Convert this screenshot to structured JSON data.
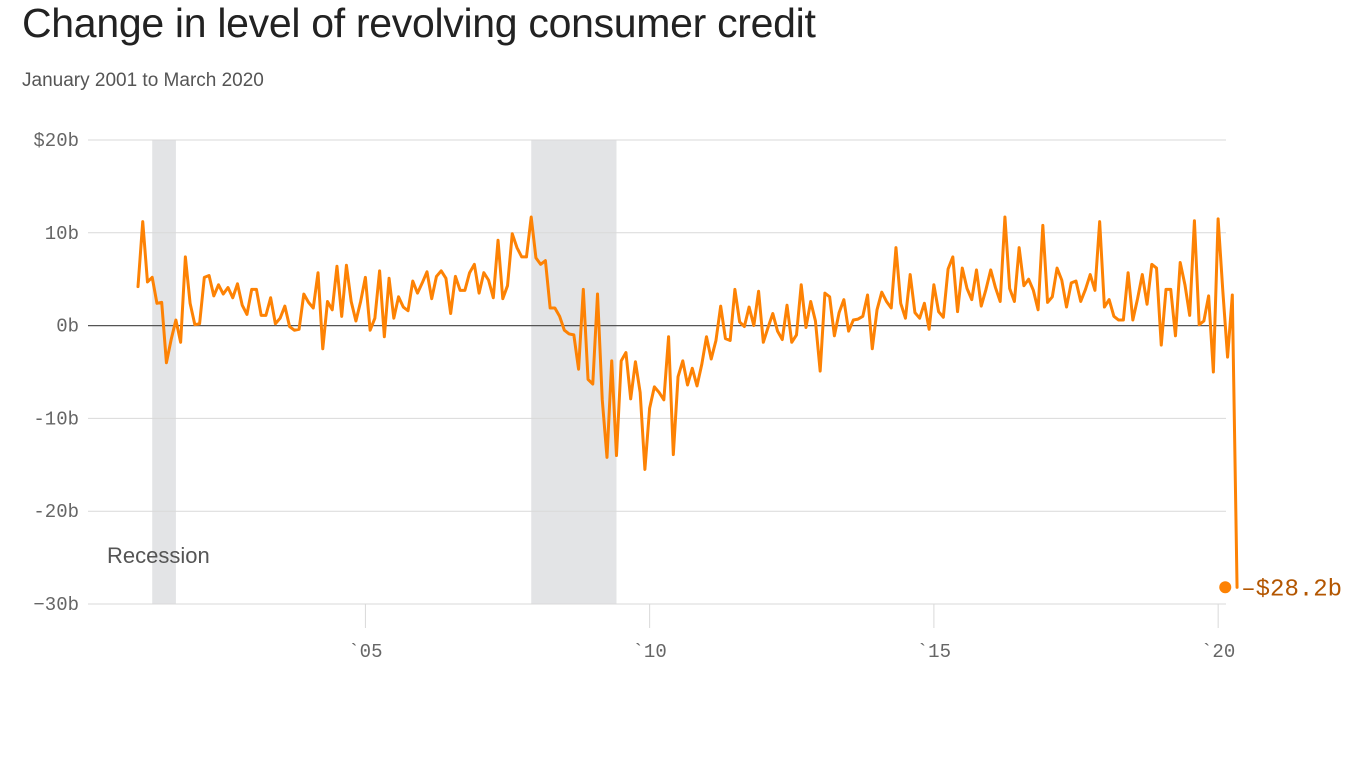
{
  "title": "Change in level of revolving consumer credit",
  "subtitle": "January 2001 to March 2020",
  "colors": {
    "line": "#fd8204",
    "end_label": "#b35600",
    "recession_band": "#e3e4e6",
    "grid": "#d9d9d9",
    "zero_line": "#555555",
    "tick_text": "#666666"
  },
  "chart_data": {
    "type": "line",
    "title": "Change in level of revolving consumer credit",
    "subtitle": "January 2001 to March 2020",
    "xlabel": "",
    "ylabel": "",
    "ylim": [
      -30,
      20
    ],
    "xlim": [
      2000.8,
      2020.2
    ],
    "grid": true,
    "y_ticks": [
      {
        "value": 20,
        "label": "$20b"
      },
      {
        "value": 10,
        "label": "10b"
      },
      {
        "value": 0,
        "label": "0b"
      },
      {
        "value": -10,
        "label": "-10b"
      },
      {
        "value": -20,
        "label": "-20b"
      },
      {
        "value": -30,
        "label": "−30b"
      }
    ],
    "x_ticks": [
      {
        "value": 2005,
        "label": "`05"
      },
      {
        "value": 2010,
        "label": "`10"
      },
      {
        "value": 2015,
        "label": "`15"
      },
      {
        "value": 2020,
        "label": "`20"
      }
    ],
    "recessions": [
      {
        "start": 2001.25,
        "end": 2001.667
      },
      {
        "start": 2007.917,
        "end": 2009.417
      }
    ],
    "recession_label": "Recession",
    "end_label": "–$28.2b",
    "end_point": {
      "x": 2020.125,
      "y": -28.2
    },
    "series": [
      {
        "x_start": 2001.0,
        "x_step": 0.08333,
        "values": [
          4.2,
          11.2,
          4.7,
          5.2,
          2.4,
          2.5,
          -4.0,
          -1.5,
          0.6,
          -1.8,
          7.4,
          2.4,
          0.1,
          0.2,
          5.2,
          5.4,
          3.2,
          4.4,
          3.4,
          4.1,
          3.0,
          4.5,
          2.2,
          1.2,
          3.9,
          3.9,
          1.1,
          1.1,
          3.0,
          0.2,
          0.8,
          2.1,
          -0.1,
          -0.5,
          -0.4,
          3.4,
          2.5,
          1.9,
          5.7,
          -2.5,
          2.6,
          1.7,
          6.4,
          1.0,
          6.5,
          2.6,
          0.5,
          2.6,
          5.2,
          -0.5,
          0.8,
          5.9,
          -1.2,
          5.1,
          0.8,
          3.1,
          2.0,
          1.6,
          4.8,
          3.5,
          4.6,
          5.8,
          2.9,
          5.3,
          5.9,
          5.1,
          1.3,
          5.3,
          3.8,
          3.8,
          5.7,
          6.6,
          3.5,
          5.7,
          4.9,
          3.0,
          9.2,
          2.9,
          4.3,
          9.9,
          8.4,
          7.4,
          7.4,
          11.7,
          7.3,
          6.6,
          7.0,
          1.9,
          1.9,
          1.0,
          -0.5,
          -0.9,
          -1.0,
          -4.7,
          3.9,
          -5.8,
          -6.3,
          3.4,
          -8.0,
          -14.2,
          -3.8,
          -14.0,
          -3.8,
          -2.9,
          -7.9,
          -3.9,
          -7.2,
          -15.5,
          -8.9,
          -6.6,
          -7.2,
          -8.0,
          -1.2,
          -13.9,
          -5.5,
          -3.8,
          -6.4,
          -4.6,
          -6.5,
          -4.2,
          -1.2,
          -3.6,
          -1.6,
          2.1,
          -1.4,
          -1.6,
          3.9,
          0.4,
          -0.1,
          2.0,
          0.0,
          3.7,
          -1.8,
          -0.2,
          1.3,
          -0.6,
          -1.5,
          2.2,
          -1.8,
          -1.0,
          4.4,
          -0.2,
          2.6,
          0.5,
          -4.9,
          3.5,
          3.1,
          -1.1,
          1.4,
          2.8,
          -0.6,
          0.6,
          0.7,
          1.0,
          3.3,
          -2.5,
          1.7,
          3.6,
          2.6,
          1.9,
          8.4,
          2.4,
          0.8,
          5.5,
          1.4,
          0.8,
          2.4,
          -0.4,
          4.4,
          1.5,
          0.9,
          6.1,
          7.4,
          1.5,
          6.2,
          4.0,
          2.8,
          6.0,
          2.1,
          3.9,
          6.0,
          4.1,
          2.6,
          11.7,
          4.0,
          2.6,
          8.4,
          4.3,
          5.0,
          3.8,
          1.7,
          10.8,
          2.5,
          3.1,
          6.2,
          4.9,
          2.0,
          4.6,
          4.8,
          2.6,
          3.9,
          5.5,
          3.8,
          11.2,
          2.0,
          2.8,
          1.0,
          0.6,
          0.6,
          5.7,
          0.6,
          2.9,
          5.5,
          2.3,
          6.6,
          6.2,
          -2.1,
          3.9,
          3.9,
          -1.1,
          6.8,
          4.4,
          1.1,
          11.3,
          0.1,
          0.5,
          3.2,
          -5.0,
          11.5,
          3.7,
          -3.4,
          3.3,
          -28.2
        ]
      }
    ]
  }
}
